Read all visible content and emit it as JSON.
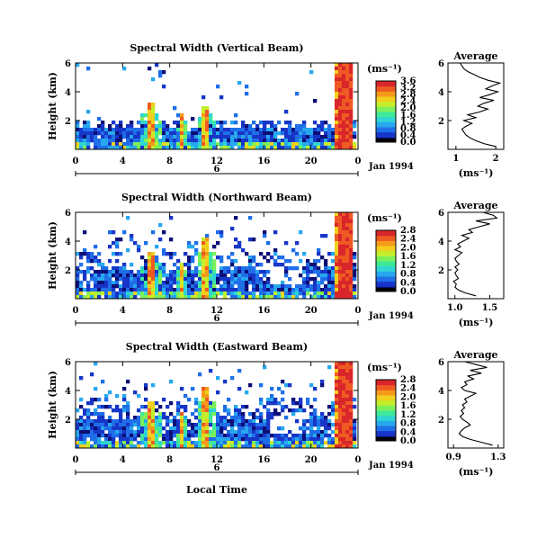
{
  "figure": {
    "xlabel": "Local Time",
    "date_label": "Jan 1994",
    "day_label": "6",
    "unit_label": "(ms⁻¹)"
  },
  "colorscale": [
    "#0b0f77",
    "#1736c8",
    "#1f6fe8",
    "#27a8ee",
    "#2ed5d3",
    "#3ee89a",
    "#7cf05a",
    "#c4ee2c",
    "#f2cf1c",
    "#f59a1a",
    "#ee5a22",
    "#d9262a"
  ],
  "chart_data": [
    {
      "type": "heatmap",
      "title": "Spectral Width (Vertical Beam)",
      "ylabel": "Height (km)",
      "xlim": [
        0,
        24
      ],
      "ylim": [
        0,
        6
      ],
      "x_ticks": [
        "0",
        "4",
        "8",
        "12",
        "16",
        "20",
        "0"
      ],
      "y_ticks": [
        "2",
        "4",
        "6"
      ],
      "colorbar_ticks": [
        "0.0",
        "0.4",
        "0.8",
        "1.2",
        "1.6",
        "2.0",
        "2.4",
        "2.8",
        "3.2",
        "3.6"
      ],
      "profile": {
        "title": "Average",
        "xlabel": "(ms⁻¹)",
        "x_ticks": [
          "1",
          "2"
        ],
        "xlim": [
          0.8,
          2.2
        ],
        "y_ticks": [
          "2",
          "4",
          "6"
        ],
        "height": [
          0.2,
          0.4,
          0.6,
          0.8,
          1.0,
          1.2,
          1.4,
          1.6,
          1.8,
          2.0,
          2.2,
          2.4,
          2.6,
          2.8,
          3.0,
          3.2,
          3.4,
          3.6,
          3.8,
          4.0,
          4.2,
          4.4,
          4.6,
          4.8,
          5.0,
          5.2,
          5.4,
          5.6,
          5.8,
          6.0
        ],
        "value": [
          2.0,
          1.7,
          1.5,
          1.35,
          1.25,
          1.2,
          1.15,
          1.25,
          1.4,
          1.2,
          1.5,
          1.3,
          1.6,
          1.8,
          1.55,
          1.7,
          1.95,
          1.6,
          1.85,
          2.05,
          1.75,
          1.9,
          2.1,
          1.8,
          1.6,
          1.45,
          1.3,
          1.2,
          1.15,
          1.1
        ]
      }
    },
    {
      "type": "heatmap",
      "title": "Spectral Width (Northward Beam)",
      "ylabel": "Height (km)",
      "xlim": [
        0,
        24
      ],
      "ylim": [
        0,
        6
      ],
      "x_ticks": [
        "0",
        "4",
        "8",
        "12",
        "16",
        "20",
        "0"
      ],
      "y_ticks": [
        "2",
        "4",
        "6"
      ],
      "colorbar_ticks": [
        "0.0",
        "0.4",
        "0.8",
        "1.2",
        "1.6",
        "2.0",
        "2.4",
        "2.8"
      ],
      "profile": {
        "title": "Average",
        "xlabel": "(ms⁻¹)",
        "x_ticks": [
          "1.0",
          "1.5"
        ],
        "xlim": [
          0.9,
          1.7
        ],
        "y_ticks": [
          "2",
          "4",
          "6"
        ],
        "height": [
          0.2,
          0.4,
          0.6,
          0.8,
          1.0,
          1.2,
          1.4,
          1.6,
          1.8,
          2.0,
          2.2,
          2.4,
          2.6,
          2.8,
          3.0,
          3.2,
          3.4,
          3.6,
          3.8,
          4.0,
          4.2,
          4.4,
          4.6,
          4.8,
          5.0,
          5.2,
          5.4,
          5.6,
          5.8,
          6.0
        ],
        "value": [
          1.3,
          1.15,
          1.05,
          1.0,
          1.02,
          0.98,
          1.05,
          1.02,
          1.0,
          1.04,
          1.0,
          1.06,
          1.02,
          1.0,
          1.05,
          1.1,
          1.0,
          1.08,
          1.04,
          1.12,
          1.2,
          1.1,
          1.25,
          1.2,
          1.35,
          1.5,
          1.3,
          1.6,
          1.55,
          1.4
        ]
      }
    },
    {
      "type": "heatmap",
      "title": "Spectral Width (Eastward Beam)",
      "ylabel": "Height (km)",
      "xlabel": "Local Time",
      "xlim": [
        0,
        24
      ],
      "ylim": [
        0,
        6
      ],
      "x_ticks": [
        "0",
        "4",
        "8",
        "12",
        "16",
        "20",
        "0"
      ],
      "y_ticks": [
        "2",
        "4",
        "6"
      ],
      "colorbar_ticks": [
        "0.0",
        "0.4",
        "0.8",
        "1.2",
        "1.6",
        "2.0",
        "2.4",
        "2.8"
      ],
      "profile": {
        "title": "Average",
        "xlabel": "(ms⁻¹)",
        "x_ticks": [
          "0.9",
          "1.3"
        ],
        "xlim": [
          0.85,
          1.35
        ],
        "y_ticks": [
          "2",
          "4",
          "6"
        ],
        "height": [
          0.2,
          0.4,
          0.6,
          0.8,
          1.0,
          1.2,
          1.4,
          1.6,
          1.8,
          2.0,
          2.2,
          2.4,
          2.6,
          2.8,
          3.0,
          3.2,
          3.4,
          3.6,
          3.8,
          4.0,
          4.2,
          4.4,
          4.6,
          4.8,
          5.0,
          5.2,
          5.4,
          5.6,
          5.8,
          6.0
        ],
        "value": [
          1.25,
          1.15,
          1.05,
          0.98,
          0.95,
          0.97,
          1.0,
          1.05,
          1.02,
          0.98,
          0.96,
          0.99,
          0.97,
          1.0,
          0.98,
          1.02,
          1.0,
          1.05,
          1.1,
          1.0,
          0.97,
          1.02,
          1.0,
          1.08,
          1.03,
          1.15,
          1.05,
          1.2,
          1.1,
          1.0
        ]
      }
    }
  ]
}
